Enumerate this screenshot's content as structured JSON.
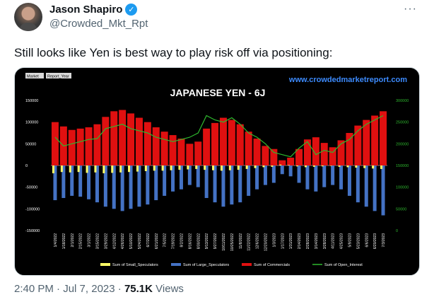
{
  "author": {
    "name": "Jason Shapiro",
    "handle": "@Crowded_Mkt_Rpt"
  },
  "tweet": {
    "text": "Still looks like Yen is best way to play risk off via positioning:",
    "time": "2:40 PM",
    "date": "Jul 7, 2023",
    "views_count": "75.1K",
    "views_label": "Views"
  },
  "icons": {
    "more": "more-options-icon",
    "verified": "verified-badge-icon"
  },
  "chart_data": {
    "type": "bar",
    "title": "JAPANESE YEN - 6J",
    "watermark": "www.crowdedmarketreport.com",
    "filter_buttons": [
      "Market",
      "Report_Year"
    ],
    "left_ylim": [
      -150000,
      150000
    ],
    "left_ticks": [
      150000,
      100000,
      50000,
      0,
      -50000,
      -100000,
      -150000
    ],
    "right_ylim": [
      0,
      300000
    ],
    "right_ticks": [
      300000,
      250000,
      200000,
      150000,
      100000,
      50000,
      0
    ],
    "categories": [
      "1/4/2022",
      "1/18/2022",
      "2/1/2022",
      "2/15/2022",
      "3/1/2022",
      "3/15/2022",
      "3/29/2022",
      "4/12/2022",
      "4/26/2022",
      "5/10/2022",
      "5/24/2022",
      "6/7/2022",
      "6/21/2022",
      "7/5/2022",
      "7/19/2022",
      "8/2/2022",
      "8/16/2022",
      "8/30/2022",
      "9/13/2022",
      "9/27/2022",
      "10/11/2022",
      "10/25/2022",
      "11/8/2022",
      "11/22/2022",
      "12/6/2022",
      "12/20/2022",
      "1/3/2023",
      "1/17/2023",
      "1/31/2023",
      "2/14/2023",
      "2/28/2023",
      "3/14/2023",
      "3/28/2023",
      "4/11/2023",
      "4/25/2023",
      "5/9/2023",
      "5/23/2023",
      "6/6/2023",
      "6/20/2023",
      "7/3/2023"
    ],
    "series": [
      {
        "name": "Sum of Small_Speculators",
        "color": "#ffff66",
        "values": [
          -18000,
          -15000,
          -16000,
          -15000,
          -17000,
          -16000,
          -18000,
          -17000,
          -16000,
          -15000,
          -14000,
          -13000,
          -12000,
          -12000,
          -11000,
          -10000,
          -9000,
          -8000,
          -10000,
          -11000,
          -12000,
          -11000,
          -10000,
          -8000,
          -6000,
          -4000,
          -3000,
          2000,
          1000,
          -2000,
          -4000,
          -3000,
          -2000,
          -1000,
          -3000,
          -4000,
          -5000,
          -6000,
          -7000,
          -8000
        ]
      },
      {
        "name": "Sum of Large_Speculators",
        "color": "#4472c4",
        "values": [
          -80000,
          -75000,
          -70000,
          -72000,
          -78000,
          -85000,
          -95000,
          -100000,
          -105000,
          -100000,
          -95000,
          -90000,
          -80000,
          -70000,
          -60000,
          -55000,
          -45000,
          -50000,
          -75000,
          -85000,
          -95000,
          -90000,
          -85000,
          -70000,
          -55000,
          -45000,
          -40000,
          -20000,
          -25000,
          -40000,
          -55000,
          -60000,
          -50000,
          -45000,
          -55000,
          -70000,
          -85000,
          -95000,
          -105000,
          -115000
        ]
      },
      {
        "name": "Sum of Commercials",
        "color": "#e01010",
        "values": [
          100000,
          90000,
          82000,
          85000,
          88000,
          95000,
          112000,
          125000,
          128000,
          120000,
          110000,
          100000,
          88000,
          78000,
          70000,
          62000,
          50000,
          55000,
          85000,
          98000,
          110000,
          105000,
          95000,
          78000,
          62000,
          45000,
          38000,
          12000,
          18000,
          38000,
          60000,
          65000,
          52000,
          42000,
          58000,
          75000,
          92000,
          105000,
          115000,
          125000
        ]
      },
      {
        "name": "Sum of Open_Interest",
        "color": "#2eb82e",
        "values": [
          215000,
          195000,
          200000,
          205000,
          210000,
          212000,
          235000,
          240000,
          245000,
          235000,
          230000,
          225000,
          215000,
          210000,
          205000,
          210000,
          215000,
          225000,
          265000,
          255000,
          250000,
          260000,
          245000,
          225000,
          215000,
          200000,
          180000,
          175000,
          170000,
          190000,
          205000,
          175000,
          185000,
          180000,
          200000,
          210000,
          230000,
          245000,
          255000,
          265000
        ]
      }
    ]
  }
}
